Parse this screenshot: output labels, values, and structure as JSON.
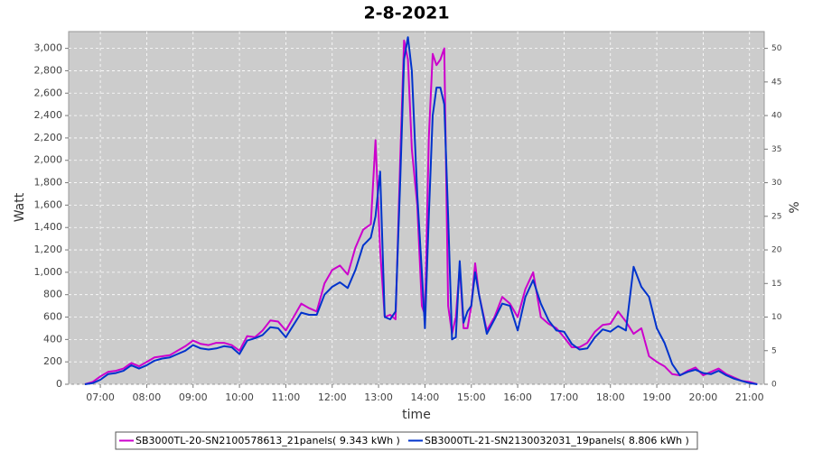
{
  "chart_data": {
    "type": "line",
    "title": "2-8-2021",
    "xlabel": "time",
    "ylabel": "Watt",
    "y2label": "%",
    "x": [
      "06:40",
      "06:50",
      "07:00",
      "07:10",
      "07:20",
      "07:30",
      "07:40",
      "07:50",
      "08:00",
      "08:10",
      "08:20",
      "08:30",
      "08:40",
      "08:50",
      "09:00",
      "09:10",
      "09:20",
      "09:30",
      "09:40",
      "09:50",
      "10:00",
      "10:10",
      "10:20",
      "10:30",
      "10:40",
      "10:50",
      "11:00",
      "11:10",
      "11:20",
      "11:30",
      "11:40",
      "11:50",
      "12:00",
      "12:10",
      "12:20",
      "12:30",
      "12:40",
      "12:50",
      "12:56",
      "13:02",
      "13:08",
      "13:15",
      "13:22",
      "13:28",
      "13:33",
      "13:38",
      "13:43",
      "13:50",
      "13:56",
      "14:00",
      "14:05",
      "14:10",
      "14:15",
      "14:20",
      "14:25",
      "14:30",
      "14:35",
      "14:40",
      "14:45",
      "14:50",
      "14:55",
      "15:00",
      "15:05",
      "15:10",
      "15:20",
      "15:30",
      "15:40",
      "15:50",
      "16:00",
      "16:10",
      "16:20",
      "16:30",
      "16:40",
      "16:50",
      "17:00",
      "17:10",
      "17:20",
      "17:30",
      "17:40",
      "17:50",
      "18:00",
      "18:10",
      "18:20",
      "18:30",
      "18:40",
      "18:50",
      "19:00",
      "19:10",
      "19:20",
      "19:30",
      "19:40",
      "19:50",
      "20:00",
      "20:10",
      "20:20",
      "20:30",
      "20:40",
      "20:50",
      "21:00",
      "21:10"
    ],
    "series": [
      {
        "name": "SB3000TL-20-SN2100578613_21panels( 9.343 kWh )",
        "color": "#cc00cc",
        "values": [
          0,
          20,
          70,
          110,
          120,
          140,
          190,
          160,
          200,
          240,
          250,
          260,
          300,
          340,
          390,
          360,
          350,
          370,
          370,
          350,
          300,
          430,
          420,
          480,
          570,
          560,
          480,
          600,
          720,
          680,
          650,
          900,
          1020,
          1060,
          980,
          1220,
          1380,
          1430,
          2180,
          1200,
          600,
          620,
          580,
          2000,
          3070,
          2900,
          2100,
          1600,
          700,
          620,
          2200,
          2950,
          2850,
          2900,
          3000,
          700,
          450,
          600,
          1050,
          500,
          500,
          700,
          1080,
          800,
          480,
          600,
          780,
          720,
          600,
          850,
          1000,
          600,
          540,
          500,
          420,
          330,
          330,
          370,
          470,
          530,
          540,
          650,
          560,
          450,
          500,
          250,
          200,
          160,
          90,
          80,
          120,
          150,
          80,
          110,
          140,
          90,
          60,
          30,
          20,
          0
        ]
      },
      {
        "name": "SB3000TL-21-SN2130032031_19panels( 8.806 kWh )",
        "color": "#0033cc",
        "values": [
          0,
          10,
          40,
          90,
          100,
          120,
          170,
          140,
          170,
          210,
          230,
          240,
          270,
          300,
          350,
          320,
          310,
          320,
          340,
          330,
          270,
          390,
          410,
          440,
          510,
          500,
          420,
          530,
          640,
          620,
          620,
          800,
          870,
          910,
          860,
          1020,
          1240,
          1310,
          1500,
          1900,
          600,
          580,
          650,
          1800,
          2900,
          3100,
          2800,
          1700,
          1000,
          500,
          1500,
          2400,
          2650,
          2650,
          2500,
          1500,
          400,
          420,
          1100,
          550,
          650,
          700,
          1000,
          800,
          450,
          580,
          720,
          700,
          480,
          780,
          930,
          720,
          570,
          480,
          470,
          360,
          310,
          320,
          420,
          490,
          470,
          520,
          480,
          1050,
          870,
          780,
          500,
          370,
          180,
          80,
          110,
          130,
          100,
          90,
          120,
          80,
          50,
          30,
          10,
          0
        ]
      }
    ],
    "xlim": [
      "06:19",
      "21:19"
    ],
    "xticks": [
      "07:00",
      "08:00",
      "09:00",
      "10:00",
      "11:00",
      "12:00",
      "13:00",
      "14:00",
      "15:00",
      "16:00",
      "17:00",
      "18:00",
      "19:00",
      "20:00",
      "21:00"
    ],
    "ylim": [
      0,
      3150
    ],
    "yticks": [
      0,
      200,
      400,
      600,
      800,
      {
        "value": 1000,
        "label": "1,000"
      },
      {
        "value": 1200,
        "label": "1,200"
      },
      {
        "value": 1400,
        "label": "1,400"
      },
      {
        "value": 1600,
        "label": "1,600"
      },
      {
        "value": 1800,
        "label": "1,800"
      },
      {
        "value": 2000,
        "label": "2,000"
      },
      {
        "value": 2200,
        "label": "2,200"
      },
      {
        "value": 2400,
        "label": "2,400"
      },
      {
        "value": 2600,
        "label": "2,600"
      },
      {
        "value": 2800,
        "label": "2,800"
      },
      {
        "value": 3000,
        "label": "3,000"
      }
    ],
    "y2lim": [
      0,
      52.5
    ],
    "y2ticks": [
      0,
      5,
      10,
      15,
      20,
      25,
      30,
      35,
      40,
      45,
      50
    ],
    "grid": true
  }
}
